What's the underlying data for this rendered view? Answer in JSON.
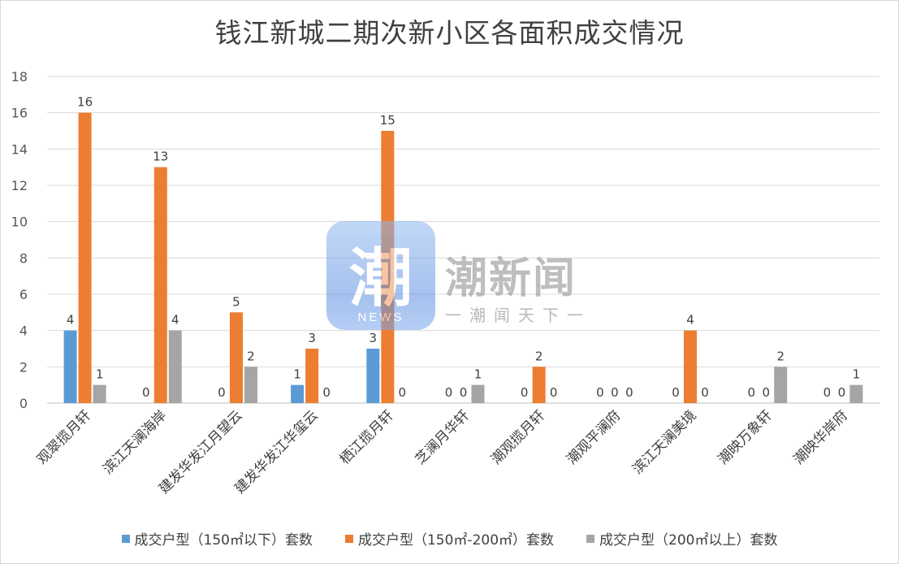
{
  "chart_data": {
    "type": "bar",
    "title": "钱江新城二期次新小区各面积成交情况",
    "categories": [
      "观翠揽月轩",
      "滨江天澜海岸",
      "建发华发江月望云",
      "建发华发江华玺云",
      "栖江揽月轩",
      "芝澜月华轩",
      "潮观揽月轩",
      "潮观平澜府",
      "滨江天澜美境",
      "潮映万象轩",
      "潮映华岸府"
    ],
    "ylim": [
      0,
      18
    ],
    "yticks": [
      "0",
      "2",
      "4",
      "6",
      "8",
      "10",
      "12",
      "14",
      "16",
      "18"
    ],
    "grid": true,
    "legend_position": "bottom",
    "series": [
      {
        "name": "成交户型（150㎡以下）套数",
        "color": "#5b9bd5",
        "values": [
          4,
          0,
          0,
          1,
          3,
          0,
          0,
          0,
          0,
          0,
          0
        ]
      },
      {
        "name": "成交户型（150㎡-200㎡）套数",
        "color": "#ed7d31",
        "values": [
          16,
          13,
          5,
          3,
          15,
          0,
          2,
          0,
          4,
          0,
          0
        ]
      },
      {
        "name": "成交户型（200㎡以上）套数",
        "color": "#a5a5a5",
        "values": [
          1,
          4,
          2,
          0,
          0,
          1,
          0,
          0,
          0,
          2,
          1
        ]
      }
    ]
  },
  "watermark": {
    "glyph": "潮",
    "news": "NEWS",
    "name": "潮新闻",
    "tagline": "一潮闻天下一"
  }
}
